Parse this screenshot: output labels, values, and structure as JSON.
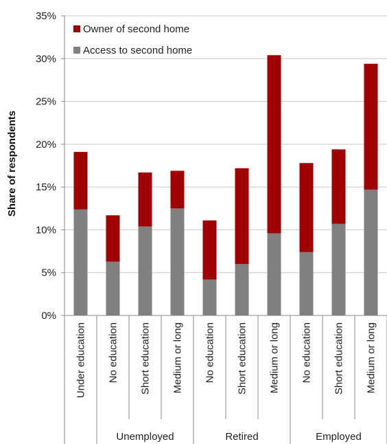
{
  "chart_data": {
    "type": "bar",
    "stacked": true,
    "title": "",
    "xlabel": "",
    "ylabel": "Share of respondents",
    "ylim": [
      0,
      35
    ],
    "y_tick_step": 5,
    "y_tick_format": "percent",
    "grid": true,
    "legend_position": "top-left",
    "categories": [
      "Under education",
      "No education",
      "Short education",
      "Medium or long",
      "No education",
      "Short education",
      "Medium or long",
      "No education",
      "Short education",
      "Medium or long"
    ],
    "groups": [
      {
        "label": "",
        "span": [
          0,
          0
        ]
      },
      {
        "label": "Unemployed",
        "span": [
          1,
          3
        ]
      },
      {
        "label": "Retired",
        "span": [
          4,
          6
        ]
      },
      {
        "label": "Employed",
        "span": [
          7,
          9
        ]
      }
    ],
    "series": [
      {
        "name": "Access to second home",
        "color": "#808080",
        "values": [
          12.4,
          6.3,
          10.4,
          12.5,
          4.2,
          6.0,
          9.6,
          7.4,
          10.7,
          14.7
        ]
      },
      {
        "name": "Owner of second home",
        "color": "#a00000",
        "values": [
          6.7,
          5.4,
          6.3,
          4.4,
          6.9,
          11.2,
          20.8,
          10.4,
          8.7,
          14.7
        ]
      }
    ],
    "legend_order": [
      "Owner of second home",
      "Access to second home"
    ]
  }
}
